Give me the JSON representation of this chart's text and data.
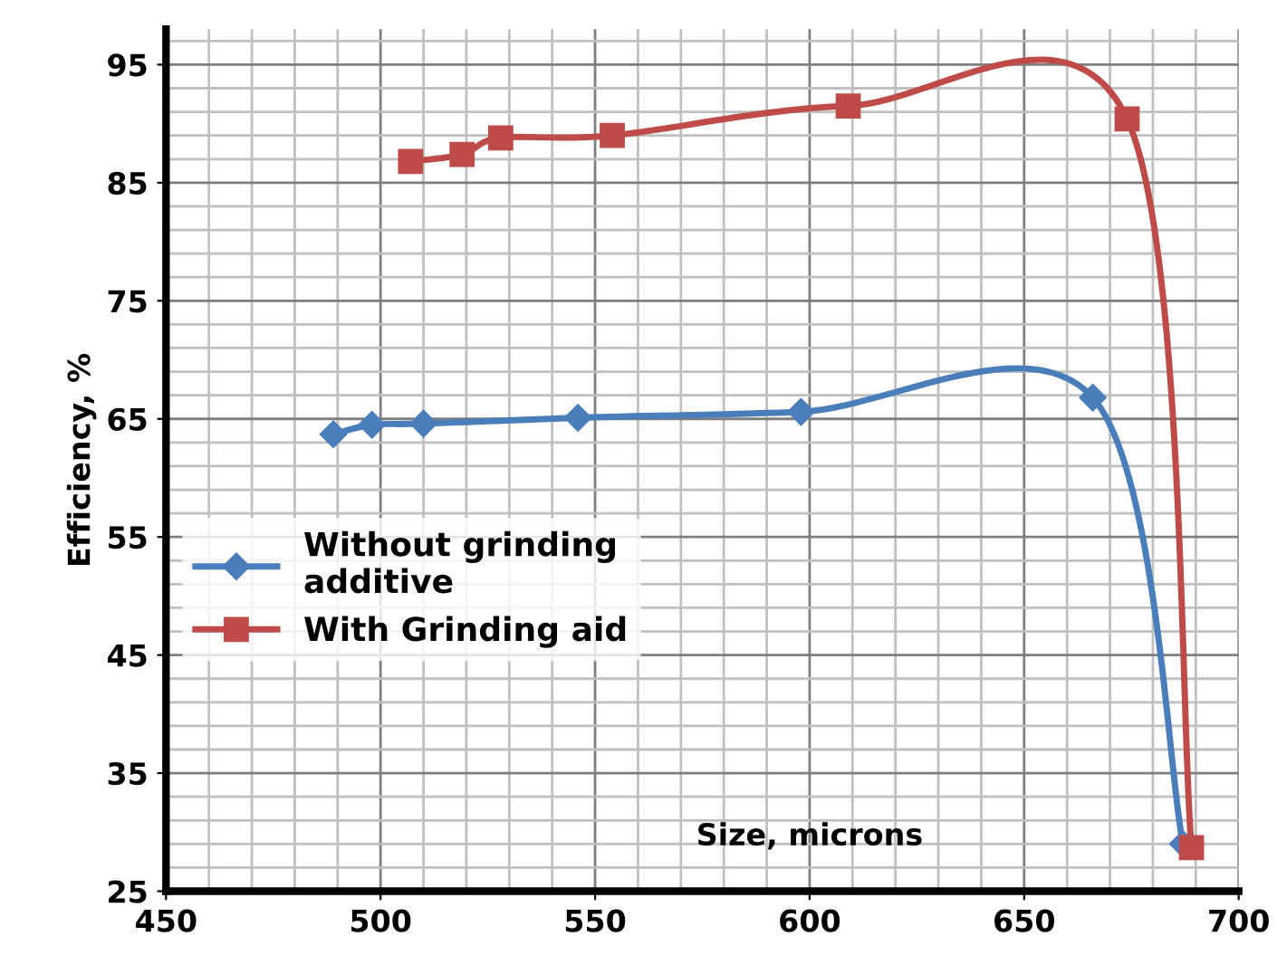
{
  "chart_data": {
    "type": "line",
    "xlabel": "Size, microns",
    "ylabel": "Efficiency, %",
    "xlim": [
      450,
      700
    ],
    "xticks": [
      450,
      500,
      550,
      600,
      650,
      700
    ],
    "ylim": [
      25,
      98
    ],
    "yticks": [
      25,
      35,
      45,
      55,
      65,
      75,
      85,
      95
    ],
    "grid": true,
    "legend": "left",
    "series": [
      {
        "name": "Without grinding\nadditive",
        "color": "#4a7ebb",
        "marker": "diamond",
        "x": [
          489,
          498,
          510,
          546,
          598,
          666,
          687
        ],
        "values": [
          63.7,
          64.5,
          64.6,
          65.1,
          65.6,
          66.8,
          29
        ]
      },
      {
        "name": "With Grinding aid",
        "color": "#be4b48",
        "marker": "square",
        "x": [
          507,
          519,
          528,
          554,
          609,
          674,
          689
        ],
        "values": [
          86.8,
          87.4,
          88.8,
          89.0,
          91.5,
          90.4,
          28.7
        ]
      }
    ]
  }
}
